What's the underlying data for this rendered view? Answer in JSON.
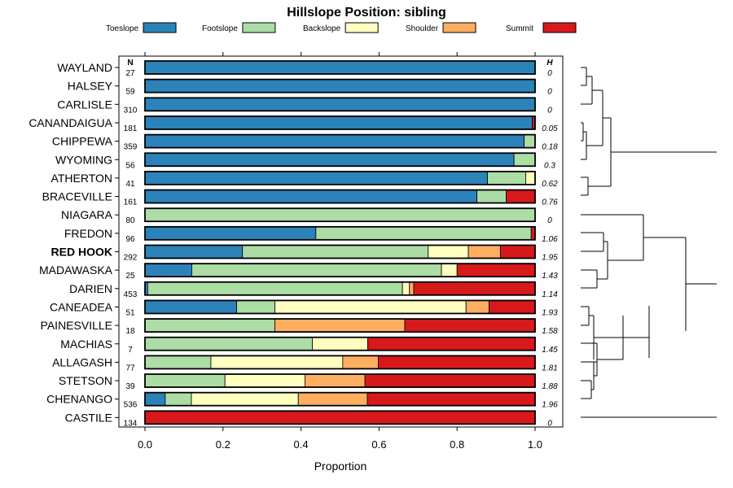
{
  "chart_data": {
    "type": "bar",
    "stacked": true,
    "orientation": "horizontal",
    "title": "Hillslope Position: sibling",
    "xlabel": "Proportion",
    "xlim": [
      0,
      1
    ],
    "xticks": [
      "0.0",
      "0.2",
      "0.4",
      "0.6",
      "0.8",
      "1.0"
    ],
    "n_header": "N",
    "h_header": "H",
    "highlight": "RED HOOK",
    "series": [
      {
        "name": "Toeslope",
        "color": "#2b83ba"
      },
      {
        "name": "Footslope",
        "color": "#abdda4"
      },
      {
        "name": "Backslope",
        "color": "#ffffbf"
      },
      {
        "name": "Shoulder",
        "color": "#fdae61"
      },
      {
        "name": "Summit",
        "color": "#d7191c"
      }
    ],
    "categories": [
      {
        "name": "WAYLAND",
        "n": "27",
        "h": "0",
        "values": [
          1.0,
          0,
          0,
          0,
          0
        ]
      },
      {
        "name": "HALSEY",
        "n": "59",
        "h": "0",
        "values": [
          1.0,
          0,
          0,
          0,
          0
        ]
      },
      {
        "name": "CARLISLE",
        "n": "310",
        "h": "0",
        "values": [
          1.0,
          0,
          0,
          0,
          0
        ]
      },
      {
        "name": "CANANDAIGUA",
        "n": "181",
        "h": "0.05",
        "values": [
          0.993,
          0,
          0,
          0,
          0.007
        ]
      },
      {
        "name": "CHIPPEWA",
        "n": "359",
        "h": "0.18",
        "values": [
          0.972,
          0.028,
          0,
          0,
          0
        ]
      },
      {
        "name": "WYOMING",
        "n": "56",
        "h": "0.3",
        "values": [
          0.946,
          0.054,
          0,
          0,
          0
        ]
      },
      {
        "name": "ATHERTON",
        "n": "41",
        "h": "0.62",
        "values": [
          0.878,
          0.098,
          0.024,
          0,
          0
        ]
      },
      {
        "name": "BRACEVILLE",
        "n": "161",
        "h": "0.76",
        "values": [
          0.851,
          0.075,
          0,
          0,
          0.074
        ]
      },
      {
        "name": "NIAGARA",
        "n": "80",
        "h": "0",
        "values": [
          0,
          1.0,
          0,
          0,
          0
        ]
      },
      {
        "name": "FREDON",
        "n": "96",
        "h": "1.06",
        "values": [
          0.438,
          0.552,
          0,
          0,
          0.01
        ]
      },
      {
        "name": "RED HOOK",
        "n": "292",
        "h": "1.95",
        "values": [
          0.25,
          0.476,
          0.103,
          0.082,
          0.089
        ]
      },
      {
        "name": "MADAWASKA",
        "n": "25",
        "h": "1.43",
        "values": [
          0.12,
          0.64,
          0.04,
          0,
          0.2
        ]
      },
      {
        "name": "DARIEN",
        "n": "453",
        "h": "1.14",
        "values": [
          0.007,
          0.653,
          0.018,
          0.011,
          0.311
        ]
      },
      {
        "name": "CANEADEA",
        "n": "51",
        "h": "1.93",
        "values": [
          0.235,
          0.098,
          0.49,
          0.059,
          0.118
        ]
      },
      {
        "name": "PAINESVILLE",
        "n": "18",
        "h": "1.58",
        "values": [
          0,
          0.333,
          0,
          0.333,
          0.334
        ]
      },
      {
        "name": "MACHIAS",
        "n": "7",
        "h": "1.45",
        "values": [
          0,
          0.429,
          0.142,
          0,
          0.429
        ]
      },
      {
        "name": "ALLAGASH",
        "n": "77",
        "h": "1.81",
        "values": [
          0,
          0.169,
          0.338,
          0.091,
          0.402
        ]
      },
      {
        "name": "STETSON",
        "n": "39",
        "h": "1.88",
        "values": [
          0,
          0.205,
          0.205,
          0.154,
          0.436
        ]
      },
      {
        "name": "CHENANGO",
        "n": "536",
        "h": "1.96",
        "values": [
          0.052,
          0.067,
          0.274,
          0.177,
          0.43
        ]
      },
      {
        "name": "CASTILE",
        "n": "134",
        "h": "0",
        "values": [
          0,
          0,
          0,
          0,
          1.0
        ]
      }
    ]
  }
}
